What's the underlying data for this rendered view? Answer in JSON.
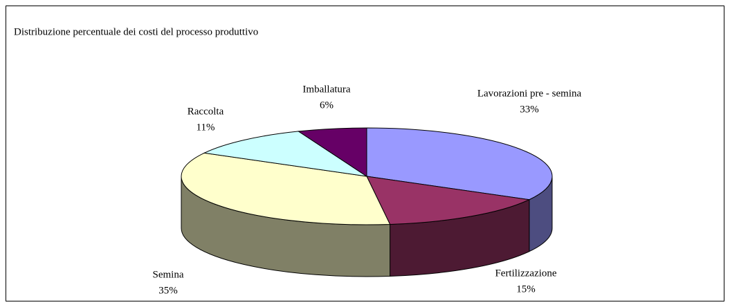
{
  "chart_data": {
    "type": "pie3d",
    "title": "Distribuzione percentuale dei costi  del processo produttivo",
    "categories": [
      "Lavorazioni pre - semina",
      "Fertilizzazione",
      "Semina",
      "Raccolta",
      "Imballatura"
    ],
    "values": [
      33,
      15,
      35,
      11,
      6
    ],
    "value_labels": [
      "33%",
      "15%",
      "35%",
      "11%",
      "6%"
    ],
    "colors": [
      "#9999ff",
      "#993366",
      "#ffffcc",
      "#ccffff",
      "#660066"
    ]
  }
}
